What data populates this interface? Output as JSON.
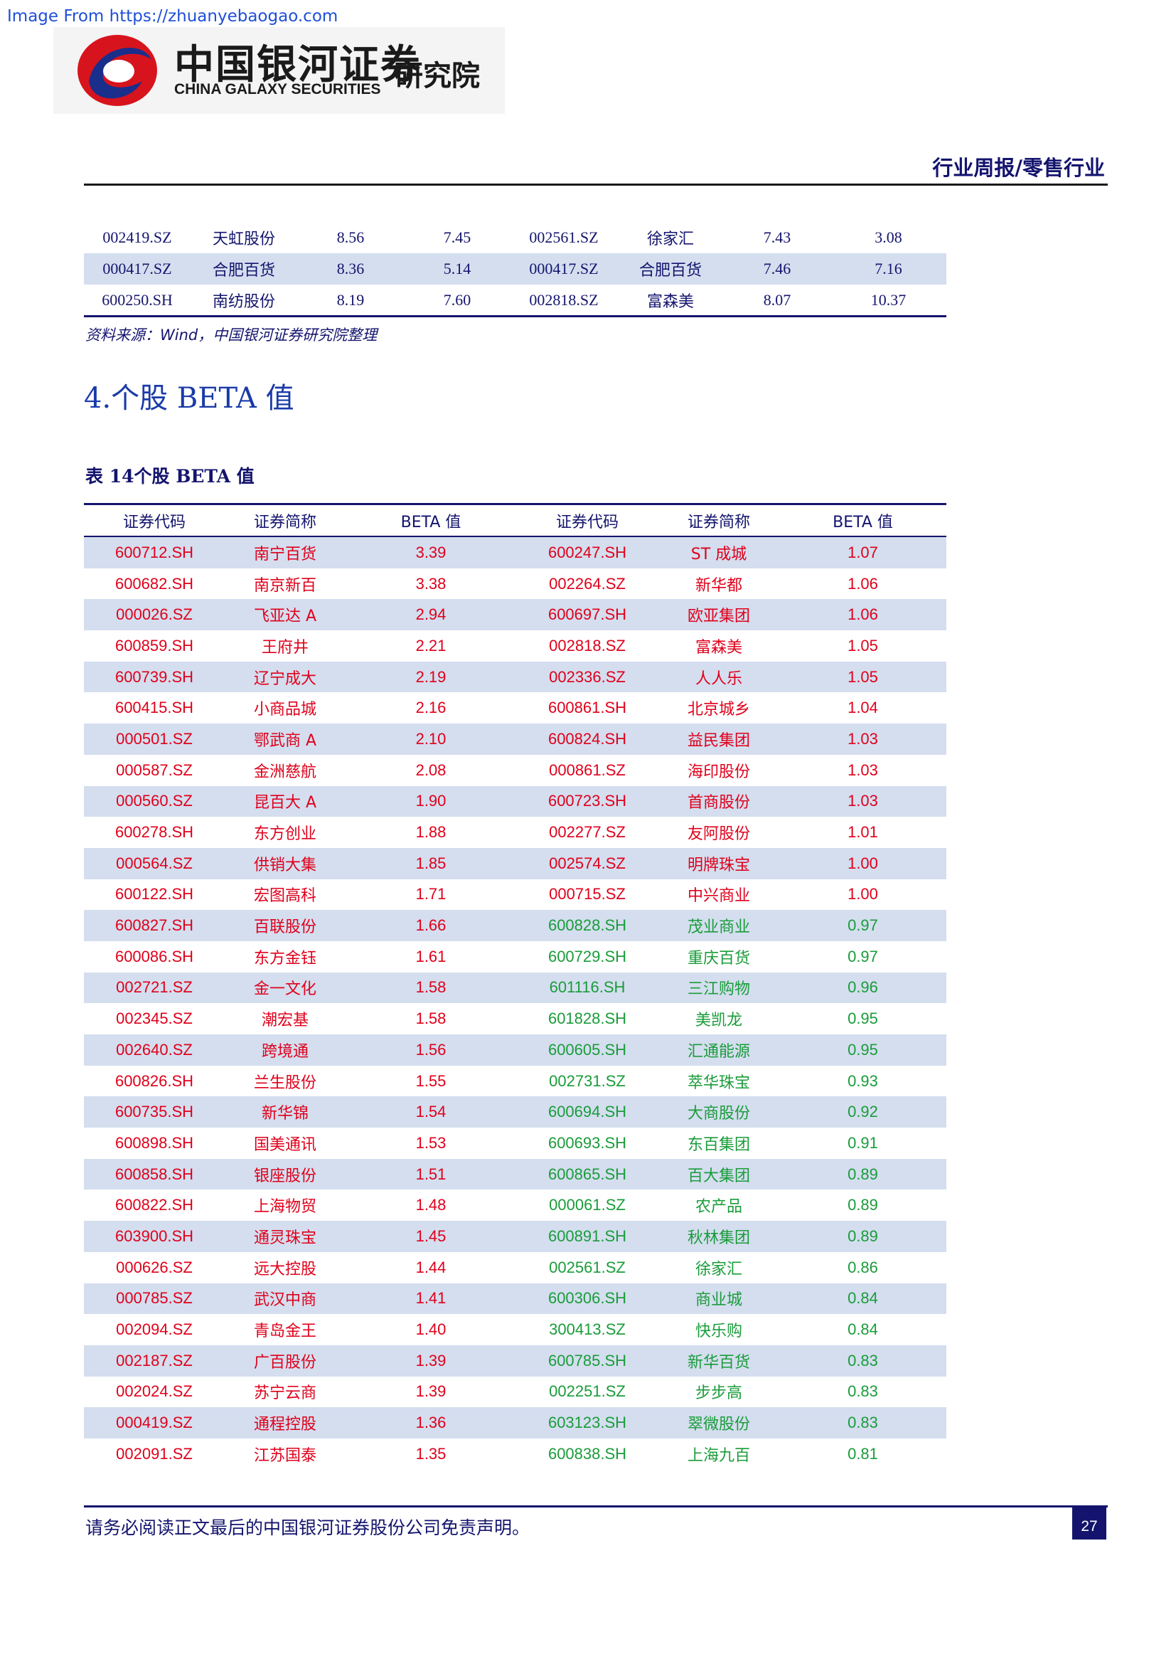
{
  "watermark": "Image From https://zhuanyebaogao.com",
  "logo": {
    "name_cn": "中国银河证券",
    "name_en": "CHINA GALAXY SECURITIES",
    "institute": "研究院"
  },
  "header": {
    "title": "行业周报/零售行业"
  },
  "prev_table": {
    "rows": [
      [
        "002419.SZ",
        "天虹股份",
        "8.56",
        "7.45",
        "002561.SZ",
        "徐家汇",
        "7.43",
        "3.08"
      ],
      [
        "000417.SZ",
        "合肥百货",
        "8.36",
        "5.14",
        "000417.SZ",
        "合肥百货",
        "7.46",
        "7.16"
      ],
      [
        "600250.SH",
        "南纺股份",
        "8.19",
        "7.60",
        "002818.SZ",
        "富森美",
        "8.07",
        "10.37"
      ]
    ]
  },
  "source": "资料来源：Wind，中国银河证券研究院整理",
  "section_title": "4.个股 BETA 值",
  "table_caption": "表 14个股 BETA 值",
  "beta_table": {
    "headers": [
      "证券代码",
      "证券简称",
      "BETA 值",
      "证券代码",
      "证券简称",
      "BETA 值"
    ],
    "rows": [
      [
        "600712.SH",
        "南宁百货",
        "3.39",
        "600247.SH",
        "ST 成城",
        "1.07"
      ],
      [
        "600682.SH",
        "南京新百",
        "3.38",
        "002264.SZ",
        "新华都",
        "1.06"
      ],
      [
        "000026.SZ",
        "飞亚达 A",
        "2.94",
        "600697.SH",
        "欧亚集团",
        "1.06"
      ],
      [
        "600859.SH",
        "王府井",
        "2.21",
        "002818.SZ",
        "富森美",
        "1.05"
      ],
      [
        "600739.SH",
        "辽宁成大",
        "2.19",
        "002336.SZ",
        "人人乐",
        "1.05"
      ],
      [
        "600415.SH",
        "小商品城",
        "2.16",
        "600861.SH",
        "北京城乡",
        "1.04"
      ],
      [
        "000501.SZ",
        "鄂武商 A",
        "2.10",
        "600824.SH",
        "益民集团",
        "1.03"
      ],
      [
        "000587.SZ",
        "金洲慈航",
        "2.08",
        "000861.SZ",
        "海印股份",
        "1.03"
      ],
      [
        "000560.SZ",
        "昆百大 A",
        "1.90",
        "600723.SH",
        "首商股份",
        "1.03"
      ],
      [
        "600278.SH",
        "东方创业",
        "1.88",
        "002277.SZ",
        "友阿股份",
        "1.01"
      ],
      [
        "000564.SZ",
        "供销大集",
        "1.85",
        "002574.SZ",
        "明牌珠宝",
        "1.00"
      ],
      [
        "600122.SH",
        "宏图高科",
        "1.71",
        "000715.SZ",
        "中兴商业",
        "1.00"
      ],
      [
        "600827.SH",
        "百联股份",
        "1.66",
        "600828.SH",
        "茂业商业",
        "0.97"
      ],
      [
        "600086.SH",
        "东方金钰",
        "1.61",
        "600729.SH",
        "重庆百货",
        "0.97"
      ],
      [
        "002721.SZ",
        "金一文化",
        "1.58",
        "601116.SH",
        "三江购物",
        "0.96"
      ],
      [
        "002345.SZ",
        "潮宏基",
        "1.58",
        "601828.SH",
        "美凯龙",
        "0.95"
      ],
      [
        "002640.SZ",
        "跨境通",
        "1.56",
        "600605.SH",
        "汇通能源",
        "0.95"
      ],
      [
        "600826.SH",
        "兰生股份",
        "1.55",
        "002731.SZ",
        "萃华珠宝",
        "0.93"
      ],
      [
        "600735.SH",
        "新华锦",
        "1.54",
        "600694.SH",
        "大商股份",
        "0.92"
      ],
      [
        "600898.SH",
        "国美通讯",
        "1.53",
        "600693.SH",
        "东百集团",
        "0.91"
      ],
      [
        "600858.SH",
        "银座股份",
        "1.51",
        "600865.SH",
        "百大集团",
        "0.89"
      ],
      [
        "600822.SH",
        "上海物贸",
        "1.48",
        "000061.SZ",
        "农产品",
        "0.89"
      ],
      [
        "603900.SH",
        "通灵珠宝",
        "1.45",
        "600891.SH",
        "秋林集团",
        "0.89"
      ],
      [
        "000626.SZ",
        "远大控股",
        "1.44",
        "002561.SZ",
        "徐家汇",
        "0.86"
      ],
      [
        "000785.SZ",
        "武汉中商",
        "1.41",
        "600306.SH",
        "商业城",
        "0.84"
      ],
      [
        "002094.SZ",
        "青岛金王",
        "1.40",
        "300413.SZ",
        "快乐购",
        "0.84"
      ],
      [
        "002187.SZ",
        "广百股份",
        "1.39",
        "600785.SH",
        "新华百货",
        "0.83"
      ],
      [
        "002024.SZ",
        "苏宁云商",
        "1.39",
        "002251.SZ",
        "步步高",
        "0.83"
      ],
      [
        "000419.SZ",
        "通程控股",
        "1.36",
        "603123.SH",
        "翠微股份",
        "0.83"
      ],
      [
        "002091.SZ",
        "江苏国泰",
        "1.35",
        "600838.SH",
        "上海九百",
        "0.81"
      ]
    ],
    "right_red_row_count": 12,
    "colors": {
      "high": "#e0001b",
      "low": "#1a9c3a",
      "stripe": "#d4deef"
    }
  },
  "footer": {
    "disclaimer": "请务必阅读正文最后的中国银河证券股份公司免责声明。",
    "page": "27"
  }
}
